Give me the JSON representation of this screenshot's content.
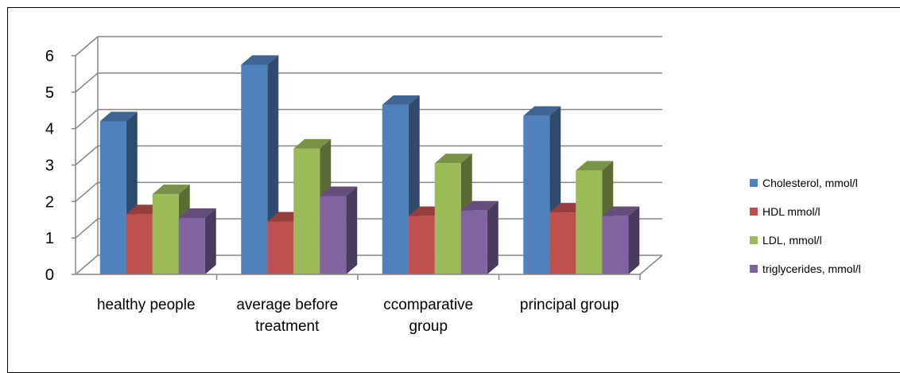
{
  "chart_data": {
    "type": "bar",
    "title": "",
    "xlabel": "",
    "ylabel": "",
    "ylim": [
      0,
      6
    ],
    "yticks": [
      "0",
      "1",
      "2",
      "3",
      "4",
      "5",
      "6"
    ],
    "grid": true,
    "legend_position": "right",
    "categories": [
      [
        "healthy people"
      ],
      [
        "average before",
        "treatment"
      ],
      [
        "ccomparative",
        "group"
      ],
      [
        "principal group"
      ]
    ],
    "series": [
      {
        "name": "Cholesterol, mmol/l",
        "color": "#4f81bd",
        "values": [
          4.2,
          5.75,
          4.65,
          4.35
        ]
      },
      {
        "name": "HDL mmol/l",
        "color": "#c0504d",
        "values": [
          1.65,
          1.45,
          1.6,
          1.7
        ]
      },
      {
        "name": "LDL, mmol/l",
        "color": "#9bbb59",
        "values": [
          2.2,
          3.45,
          3.05,
          2.85
        ]
      },
      {
        "name": "triglycerides, mmol/l",
        "color": "#8064a2",
        "values": [
          1.55,
          2.15,
          1.75,
          1.6
        ]
      }
    ]
  }
}
